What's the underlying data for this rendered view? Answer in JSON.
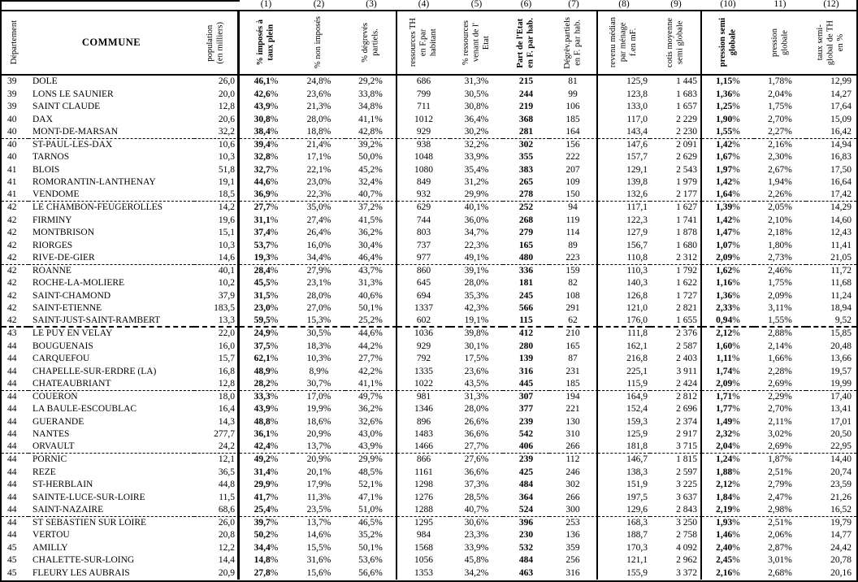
{
  "colors": {
    "ink": "#000000",
    "paper": "#ffffff"
  },
  "table": {
    "columns": [
      {
        "key": "dept",
        "num": "",
        "label": "Département",
        "bold": false,
        "align": "left"
      },
      {
        "key": "commune",
        "num": "",
        "label": "COMMUNE",
        "bold": true,
        "align": "left"
      },
      {
        "key": "pop",
        "num": "",
        "label": "population\n(en milliers)",
        "bold": false,
        "align": "right"
      },
      {
        "key": "c1",
        "num": "(1)",
        "label": "% imposés à\ntaux plein",
        "bold": true,
        "align": "center"
      },
      {
        "key": "c2",
        "num": "(2)",
        "label": "% non imposés",
        "bold": false,
        "align": "center"
      },
      {
        "key": "c3",
        "num": "(3)",
        "label": "% dégrevés\npartiels.",
        "bold": false,
        "align": "center"
      },
      {
        "key": "c4",
        "num": "(4)",
        "label": "ressources TH\nen F.par\nhabitant",
        "bold": false,
        "align": "center"
      },
      {
        "key": "c5",
        "num": "(5)",
        "label": "% ressources\nvenant de l'\nEtat",
        "bold": false,
        "align": "center"
      },
      {
        "key": "c6",
        "num": "(6)",
        "label": "Part de l'Etat\nen F. par hab.",
        "bold": true,
        "align": "center"
      },
      {
        "key": "c7",
        "num": "(7)",
        "label": "Dégrèv.partiels\nen F. par hab.",
        "bold": false,
        "align": "center"
      },
      {
        "key": "c8",
        "num": "(8)",
        "label": "revenu médian\npar ménage\nf.en mF.",
        "bold": false,
        "align": "right"
      },
      {
        "key": "c9",
        "num": "(9)",
        "label": "cotis moyenne\nsemi globale",
        "bold": false,
        "align": "right"
      },
      {
        "key": "c10",
        "num": "(10)",
        "label": "pression semi\nglobale",
        "bold": true,
        "align": "center"
      },
      {
        "key": "c11",
        "num": "11)",
        "label": "pression\nglobale",
        "bold": false,
        "align": "center"
      },
      {
        "key": "c12",
        "num": "(12)",
        "label": "taux semi-\nglobal de TH\nen %",
        "bold": false,
        "align": "right"
      }
    ],
    "rows": [
      [
        "39",
        "DOLE",
        "26,0",
        "46,1%",
        "24,8%",
        "29,2%",
        "686",
        "31,3%",
        "215",
        "81",
        "125,9",
        "1 445",
        "1,15%",
        "1,78%",
        "12,99"
      ],
      [
        "39",
        "LONS LE SAUNIER",
        "20,0",
        "42,6%",
        "23,6%",
        "33,8%",
        "799",
        "30,5%",
        "244",
        "99",
        "123,8",
        "1 683",
        "1,36%",
        "2,04%",
        "14,27"
      ],
      [
        "39",
        "SAINT CLAUDE",
        "12,8",
        "43,9%",
        "21,3%",
        "34,8%",
        "711",
        "30,8%",
        "219",
        "106",
        "133,0",
        "1 657",
        "1,25%",
        "1,75%",
        "17,64"
      ],
      [
        "40",
        "DAX",
        "20,6",
        "30,8%",
        "28,0%",
        "41,1%",
        "1012",
        "36,4%",
        "368",
        "185",
        "117,0",
        "2 229",
        "1,90%",
        "2,70%",
        "15,09"
      ],
      [
        "40",
        "MONT-DE-MARSAN",
        "32,2",
        "38,4%",
        "18,8%",
        "42,8%",
        "929",
        "30,2%",
        "281",
        "164",
        "143,4",
        "2 230",
        "1,55%",
        "2,27%",
        "16,42"
      ],
      [
        "40",
        "ST-PAUL-LES-DAX",
        "10,6",
        "39,4%",
        "21,4%",
        "39,2%",
        "938",
        "32,2%",
        "302",
        "156",
        "147,6",
        "2 091",
        "1,42%",
        "2,16%",
        "14,94"
      ],
      [
        "40",
        "TARNOS",
        "10,3",
        "32,8%",
        "17,1%",
        "50,0%",
        "1048",
        "33,9%",
        "355",
        "222",
        "157,7",
        "2 629",
        "1,67%",
        "2,30%",
        "16,83"
      ],
      [
        "41",
        "BLOIS",
        "51,8",
        "32,7%",
        "22,1%",
        "45,2%",
        "1080",
        "35,4%",
        "383",
        "207",
        "129,1",
        "2 543",
        "1,97%",
        "2,67%",
        "17,50"
      ],
      [
        "41",
        "ROMORANTIN-LANTHENAY",
        "19,1",
        "44,6%",
        "23,0%",
        "32,4%",
        "849",
        "31,2%",
        "265",
        "109",
        "139,8",
        "1 979",
        "1,42%",
        "1,94%",
        "16,64"
      ],
      [
        "41",
        "VENDOME",
        "18,5",
        "36,9%",
        "22,3%",
        "40,7%",
        "932",
        "29,9%",
        "278",
        "150",
        "132,6",
        "2 177",
        "1,64%",
        "2,26%",
        "17,42"
      ],
      [
        "42",
        "LE CHAMBON-FEUGEROLLES",
        "14,2",
        "27,7%",
        "35,0%",
        "37,2%",
        "629",
        "40,1%",
        "252",
        "94",
        "117,1",
        "1 627",
        "1,39%",
        "2,05%",
        "14,29"
      ],
      [
        "42",
        "FIRMINY",
        "19,6",
        "31,1%",
        "27,4%",
        "41,5%",
        "744",
        "36,0%",
        "268",
        "119",
        "122,3",
        "1 741",
        "1,42%",
        "2,10%",
        "14,60"
      ],
      [
        "42",
        "MONTBRISON",
        "15,1",
        "37,4%",
        "26,4%",
        "36,2%",
        "803",
        "34,7%",
        "279",
        "114",
        "127,9",
        "1 878",
        "1,47%",
        "2,18%",
        "12,43"
      ],
      [
        "42",
        "RIORGES",
        "10,3",
        "53,7%",
        "16,0%",
        "30,4%",
        "737",
        "22,3%",
        "165",
        "89",
        "156,7",
        "1 680",
        "1,07%",
        "1,80%",
        "11,41"
      ],
      [
        "42",
        "RIVE-DE-GIER",
        "14,6",
        "19,3%",
        "34,4%",
        "46,4%",
        "977",
        "49,1%",
        "480",
        "223",
        "110,8",
        "2 312",
        "2,09%",
        "2,73%",
        "21,05"
      ],
      [
        "42",
        "ROANNE",
        "40,1",
        "28,4%",
        "27,9%",
        "43,7%",
        "860",
        "39,1%",
        "336",
        "159",
        "110,3",
        "1 792",
        "1,62%",
        "2,46%",
        "11,72"
      ],
      [
        "42",
        "ROCHE-LA-MOLIERE",
        "10,2",
        "45,5%",
        "23,1%",
        "31,3%",
        "645",
        "28,0%",
        "181",
        "82",
        "140,3",
        "1 622",
        "1,16%",
        "1,75%",
        "11,68"
      ],
      [
        "42",
        "SAINT-CHAMOND",
        "37,9",
        "31,5%",
        "28,0%",
        "40,6%",
        "694",
        "35,3%",
        "245",
        "108",
        "126,8",
        "1 727",
        "1,36%",
        "2,09%",
        "11,24"
      ],
      [
        "42",
        "SAINT-ETIENNE",
        "183,5",
        "23,0%",
        "27,0%",
        "50,1%",
        "1337",
        "42,3%",
        "566",
        "291",
        "121,0",
        "2 821",
        "2,33%",
        "3,11%",
        "18,94"
      ],
      [
        "42",
        "SAINT-JUST-SAINT-RAMBERT",
        "13,3",
        "59,5%",
        "15,3%",
        "25,2%",
        "602",
        "19,1%",
        "115",
        "62",
        "176,0",
        "1 655",
        "0,94%",
        "1,55%",
        "9,52"
      ],
      [
        "43",
        "LE PUY EN VELAY",
        "22,0",
        "24,9%",
        "30,5%",
        "44,6%",
        "1036",
        "39,8%",
        "412",
        "210",
        "111,8",
        "2 376",
        "2,12%",
        "2,88%",
        "15,85"
      ],
      [
        "44",
        "BOUGUENAIS",
        "16,0",
        "37,5%",
        "18,3%",
        "44,2%",
        "929",
        "30,1%",
        "280",
        "165",
        "162,1",
        "2 587",
        "1,60%",
        "2,14%",
        "20,48"
      ],
      [
        "44",
        "CARQUEFOU",
        "15,7",
        "62,1%",
        "10,3%",
        "27,7%",
        "792",
        "17,5%",
        "139",
        "87",
        "216,8",
        "2 403",
        "1,11%",
        "1,66%",
        "13,66"
      ],
      [
        "44",
        "CHAPELLE-SUR-ERDRE (LA)",
        "16,8",
        "48,9%",
        "8,9%",
        "42,2%",
        "1335",
        "23,6%",
        "316",
        "231",
        "225,1",
        "3 911",
        "1,74%",
        "2,28%",
        "19,57"
      ],
      [
        "44",
        "CHATEAUBRIANT",
        "12,8",
        "28,2%",
        "30,7%",
        "41,1%",
        "1022",
        "43,5%",
        "445",
        "185",
        "115,9",
        "2 424",
        "2,09%",
        "2,69%",
        "19,99"
      ],
      [
        "44",
        "COUERON",
        "18,0",
        "33,3%",
        "17,0%",
        "49,7%",
        "981",
        "31,3%",
        "307",
        "194",
        "164,9",
        "2 812",
        "1,71%",
        "2,29%",
        "17,40"
      ],
      [
        "44",
        "LA BAULE-ESCOUBLAC",
        "16,4",
        "43,9%",
        "19,9%",
        "36,2%",
        "1346",
        "28,0%",
        "377",
        "221",
        "152,4",
        "2 696",
        "1,77%",
        "2,70%",
        "13,41"
      ],
      [
        "44",
        "GUERANDE",
        "14,3",
        "48,8%",
        "18,6%",
        "32,6%",
        "896",
        "26,6%",
        "239",
        "130",
        "159,3",
        "2 374",
        "1,49%",
        "2,11%",
        "17,01"
      ],
      [
        "44",
        "NANTES",
        "277,7",
        "36,1%",
        "20,9%",
        "43,0%",
        "1483",
        "36,6%",
        "542",
        "310",
        "125,9",
        "2 917",
        "2,32%",
        "3,02%",
        "20,50"
      ],
      [
        "44",
        "ORVAULT",
        "24,2",
        "42,4%",
        "13,7%",
        "43,9%",
        "1466",
        "27,7%",
        "406",
        "266",
        "181,8",
        "3 715",
        "2,04%",
        "2,69%",
        "22,95"
      ],
      [
        "44",
        "PORNIC",
        "12,1",
        "49,2%",
        "20,9%",
        "29,9%",
        "866",
        "27,6%",
        "239",
        "112",
        "146,7",
        "1 815",
        "1,24%",
        "1,87%",
        "14,40"
      ],
      [
        "44",
        "REZE",
        "36,5",
        "31,4%",
        "20,1%",
        "48,5%",
        "1161",
        "36,6%",
        "425",
        "246",
        "138,3",
        "2 597",
        "1,88%",
        "2,51%",
        "20,74"
      ],
      [
        "44",
        "ST-HERBLAIN",
        "44,8",
        "29,9%",
        "17,9%",
        "52,1%",
        "1298",
        "37,3%",
        "484",
        "302",
        "151,9",
        "3 225",
        "2,12%",
        "2,79%",
        "23,59"
      ],
      [
        "44",
        "SAINTE-LUCE-SUR-LOIRE",
        "11,5",
        "41,7%",
        "11,3%",
        "47,1%",
        "1276",
        "28,5%",
        "364",
        "266",
        "197,5",
        "3 637",
        "1,84%",
        "2,47%",
        "21,26"
      ],
      [
        "44",
        "SAINT-NAZAIRE",
        "68,6",
        "25,4%",
        "23,5%",
        "51,0%",
        "1288",
        "40,7%",
        "524",
        "300",
        "129,6",
        "2 843",
        "2,19%",
        "2,98%",
        "16,52"
      ],
      [
        "44",
        "ST SEBASTIEN SUR LOIRE",
        "26,0",
        "39,7%",
        "13,7%",
        "46,5%",
        "1295",
        "30,6%",
        "396",
        "253",
        "168,3",
        "3 250",
        "1,93%",
        "2,51%",
        "19,79"
      ],
      [
        "44",
        "VERTOU",
        "20,8",
        "50,2%",
        "14,6%",
        "35,2%",
        "984",
        "23,3%",
        "230",
        "136",
        "188,7",
        "2 758",
        "1,46%",
        "2,06%",
        "14,77"
      ],
      [
        "45",
        "AMILLY",
        "12,2",
        "34,4%",
        "15,5%",
        "50,1%",
        "1568",
        "33,9%",
        "532",
        "359",
        "170,3",
        "4 092",
        "2,40%",
        "2,87%",
        "24,42"
      ],
      [
        "45",
        "CHALETTE-SUR-LOING",
        "14,4",
        "14,8%",
        "31,6%",
        "53,6%",
        "1056",
        "45,8%",
        "484",
        "256",
        "121,1",
        "2 962",
        "2,45%",
        "3,01%",
        "20,78"
      ],
      [
        "45",
        "FLEURY LES AUBRAIS",
        "20,9",
        "27,8%",
        "15,6%",
        "56,6%",
        "1353",
        "34,2%",
        "463",
        "316",
        "155,9",
        "3 372",
        "2,16%",
        "2,68%",
        "20,16"
      ]
    ],
    "group_separators": {
      "thin_after": [
        5,
        10,
        15,
        25,
        30,
        35
      ],
      "thick_after": [
        20
      ]
    }
  }
}
